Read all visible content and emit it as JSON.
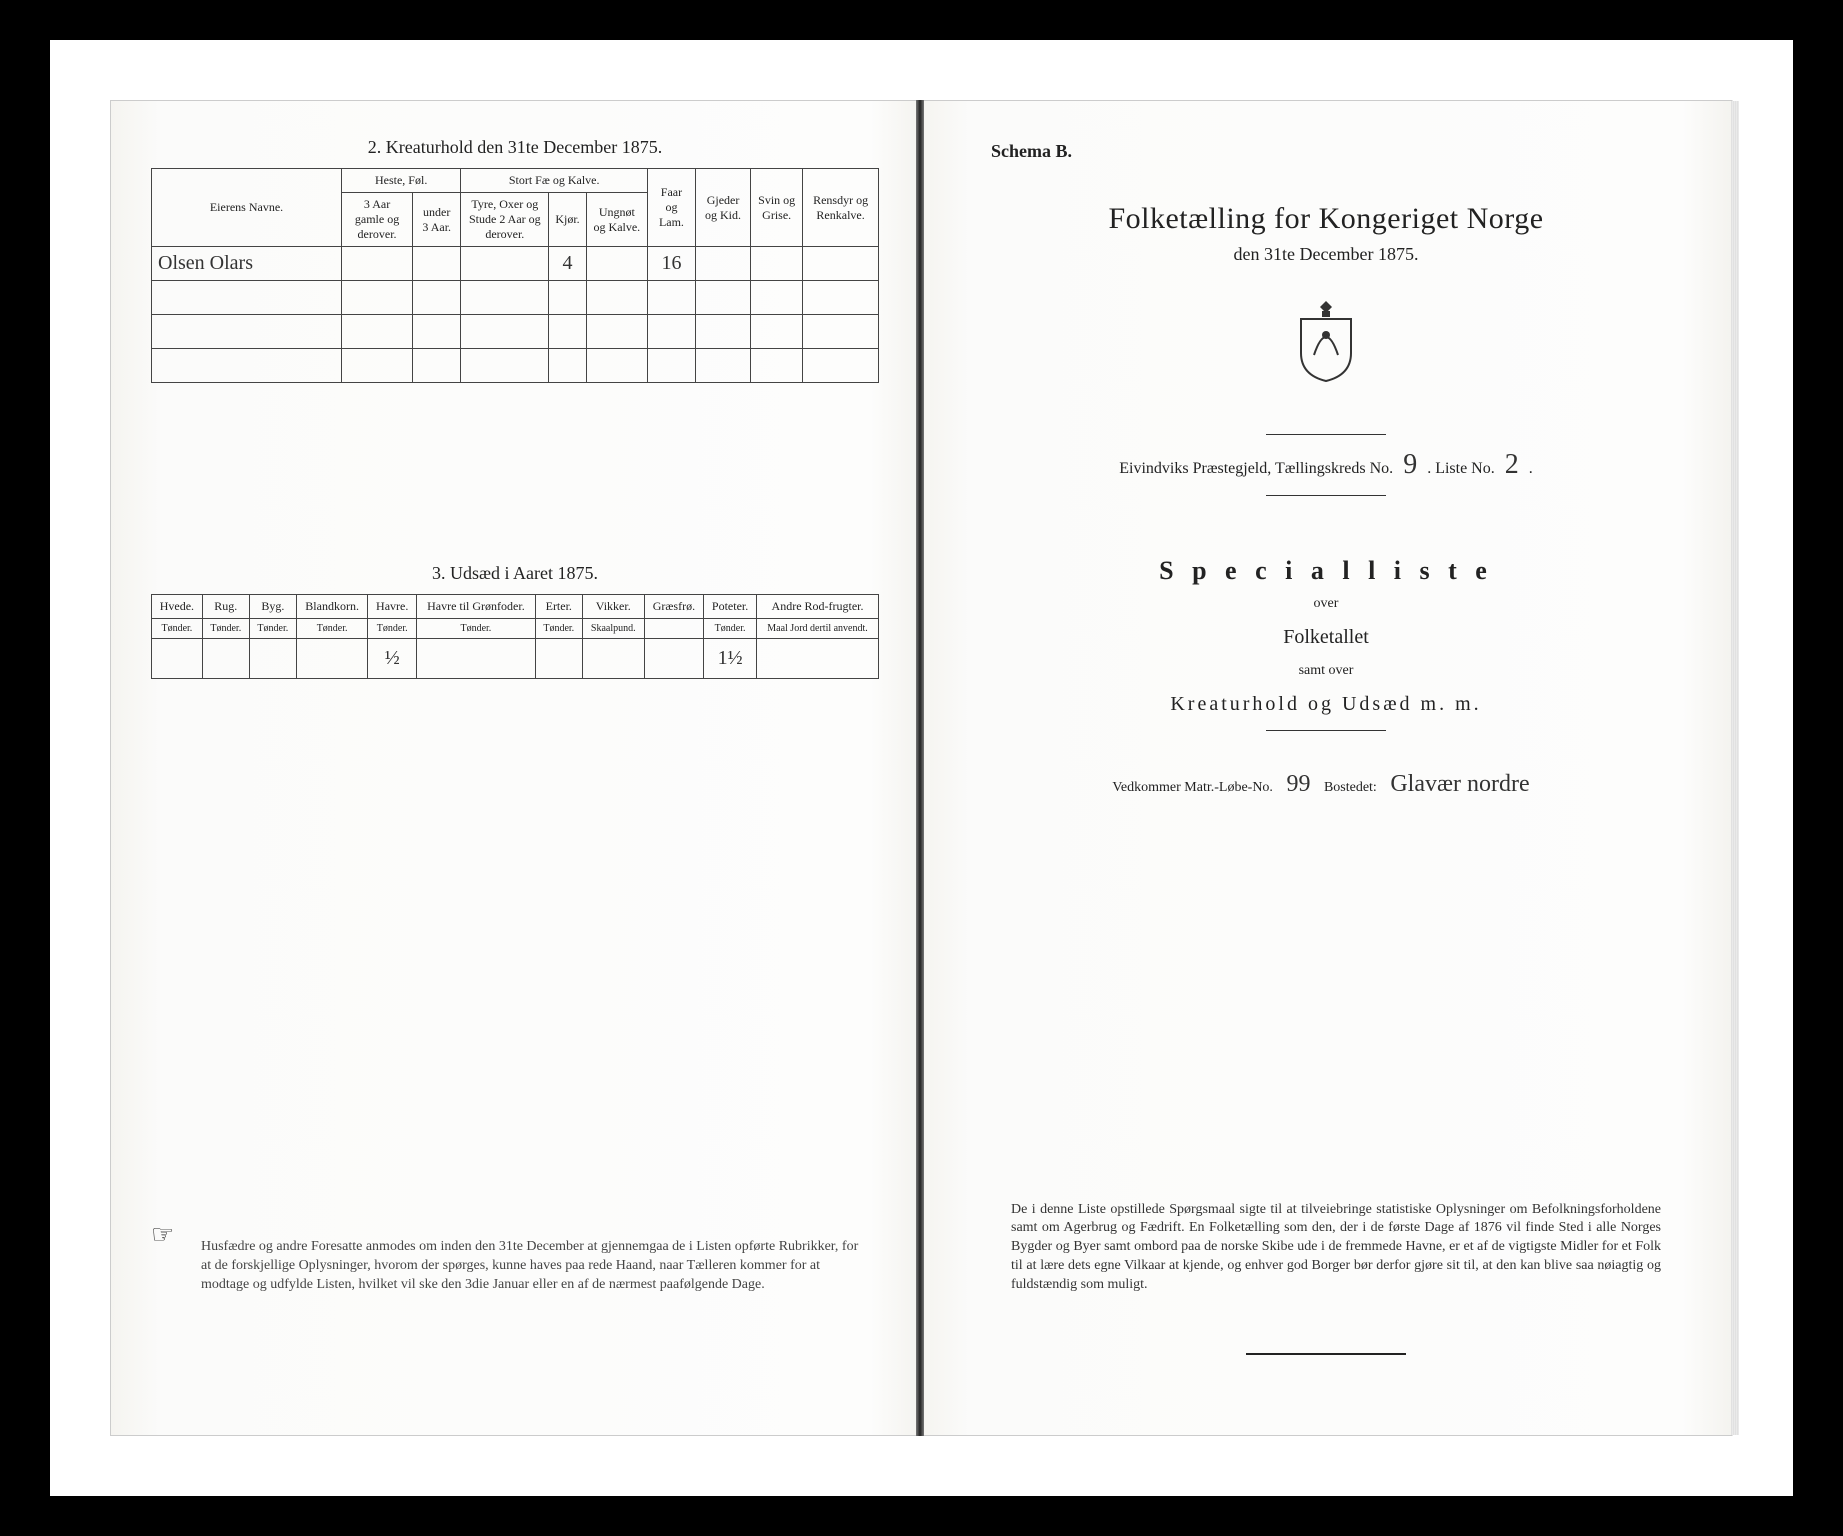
{
  "left": {
    "section2": {
      "title": "2.  Kreaturhold den 31te December 1875.",
      "headers": {
        "eier": "Eierens Navne.",
        "heste": "Heste, Føl.",
        "heste_sub": [
          "3 Aar gamle og derover.",
          "under 3 Aar."
        ],
        "stort": "Stort Fæ og Kalve.",
        "stort_sub": [
          "Tyre, Oxer og Stude 2 Aar og derover.",
          "Kjør.",
          "Ungnøt og Kalve."
        ],
        "faar": "Faar og Lam.",
        "gjeder": "Gjeder og Kid.",
        "svin": "Svin og Grise.",
        "rens": "Rensdyr og Renkalve."
      },
      "row": {
        "name": "Olsen Olars",
        "vals": [
          "",
          "",
          "",
          "4",
          "",
          "16",
          "",
          "",
          ""
        ]
      }
    },
    "section3": {
      "title": "3.  Udsæd i Aaret 1875.",
      "cols": [
        {
          "h": "Hvede.",
          "s": "Tønder."
        },
        {
          "h": "Rug.",
          "s": "Tønder."
        },
        {
          "h": "Byg.",
          "s": "Tønder."
        },
        {
          "h": "Blandkorn.",
          "s": "Tønder."
        },
        {
          "h": "Havre.",
          "s": "Tønder."
        },
        {
          "h": "Havre til Grønfoder.",
          "s": "Tønder."
        },
        {
          "h": "Erter.",
          "s": "Tønder."
        },
        {
          "h": "Vikker.",
          "s": "Skaalpund."
        },
        {
          "h": "Græsfrø.",
          "s": ""
        },
        {
          "h": "Poteter.",
          "s": "Tønder."
        },
        {
          "h": "Andre Rod-frugter.",
          "s": "Maal Jord dertil anvendt."
        }
      ],
      "row": [
        "",
        "",
        "",
        "",
        "½",
        "",
        "",
        "",
        "",
        "1½",
        ""
      ]
    },
    "footnote": "Husfædre og andre Foresatte anmodes om inden den 31te December at gjennemgaa de i Listen opførte Rubrikker, for at de forskjellige Oplysninger, hvorom der spørges, kunne haves paa rede Haand, naar Tælleren kommer for at modtage og udfylde Listen, hvilket vil ske den 3die Januar eller en af de nærmest paafølgende Dage."
  },
  "right": {
    "schema": "Schema B.",
    "title": "Folketælling for Kongeriget Norge",
    "subtitle": "den 31te December 1875.",
    "prest_line": {
      "pre": "Eivindviks Præstegjeld, Tællingskreds No.",
      "kreds": "9",
      "mid": ".   Liste No.",
      "liste": "2",
      "post": "."
    },
    "special": "S p e c i a l l i s t e",
    "over": "over",
    "folketallet": "Folketallet",
    "samt": "samt over",
    "kreatur": "Kreaturhold  og  Udsæd  m. m.",
    "vedk": {
      "pre": "Vedkommer Matr.-Løbe-No.",
      "no": "99",
      "mid": "Bostedet:",
      "sted": "Glavær nordre"
    },
    "paragraph": "De i denne Liste opstillede Spørgsmaal sigte til at tilveiebringe statistiske Oplysninger om Befolkningsforholdene samt om Agerbrug og Fædrift. En Folketælling som den, der i de første Dage af 1876 vil finde Sted i alle Norges Bygder og Byer samt ombord paa de norske Skibe ude i de fremmede Havne, er et af de vigtigste Midler for et Folk til at lære dets egne Vilkaar at kjende, og enhver god Borger bør derfor gjøre sit til, at den kan blive saa nøiagtig og fuldstændig som muligt."
  }
}
